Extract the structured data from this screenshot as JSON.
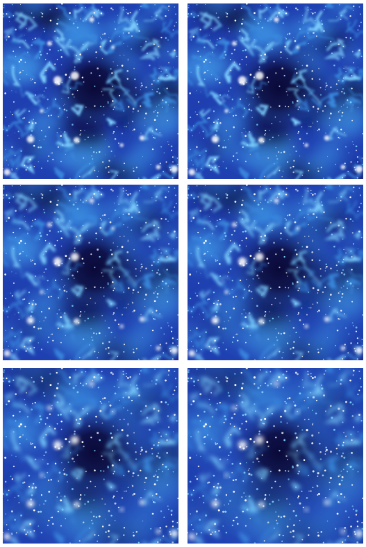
{
  "figure": {
    "rows": 3,
    "columns": 2,
    "panels": [
      {
        "id": "panel-1",
        "row": 1,
        "col": 1,
        "colormap": [
          "#0a0838",
          "#1f3fb0",
          "#3a8be0",
          "#7fd2ff",
          "#ffffff"
        ]
      },
      {
        "id": "panel-2",
        "row": 1,
        "col": 2,
        "colormap": [
          "#0a0838",
          "#1f3fb0",
          "#3a8be0",
          "#7fd2ff",
          "#ffffff"
        ]
      },
      {
        "id": "panel-3",
        "row": 2,
        "col": 1,
        "colormap": [
          "#0a0838",
          "#1f3fb0",
          "#3a8be0",
          "#7fd2ff",
          "#ffffff"
        ]
      },
      {
        "id": "panel-4",
        "row": 2,
        "col": 2,
        "colormap": [
          "#0a0838",
          "#1f3fb0",
          "#3a8be0",
          "#7fd2ff",
          "#ffffff"
        ]
      },
      {
        "id": "panel-5",
        "row": 3,
        "col": 1,
        "colormap": [
          "#0a0838",
          "#1f3fb0",
          "#3a8be0",
          "#7fd2ff",
          "#ffffff"
        ]
      },
      {
        "id": "panel-6",
        "row": 3,
        "col": 2,
        "colormap": [
          "#0a0838",
          "#1f3fb0",
          "#3a8be0",
          "#7fd2ff",
          "#ffffff"
        ]
      }
    ]
  }
}
